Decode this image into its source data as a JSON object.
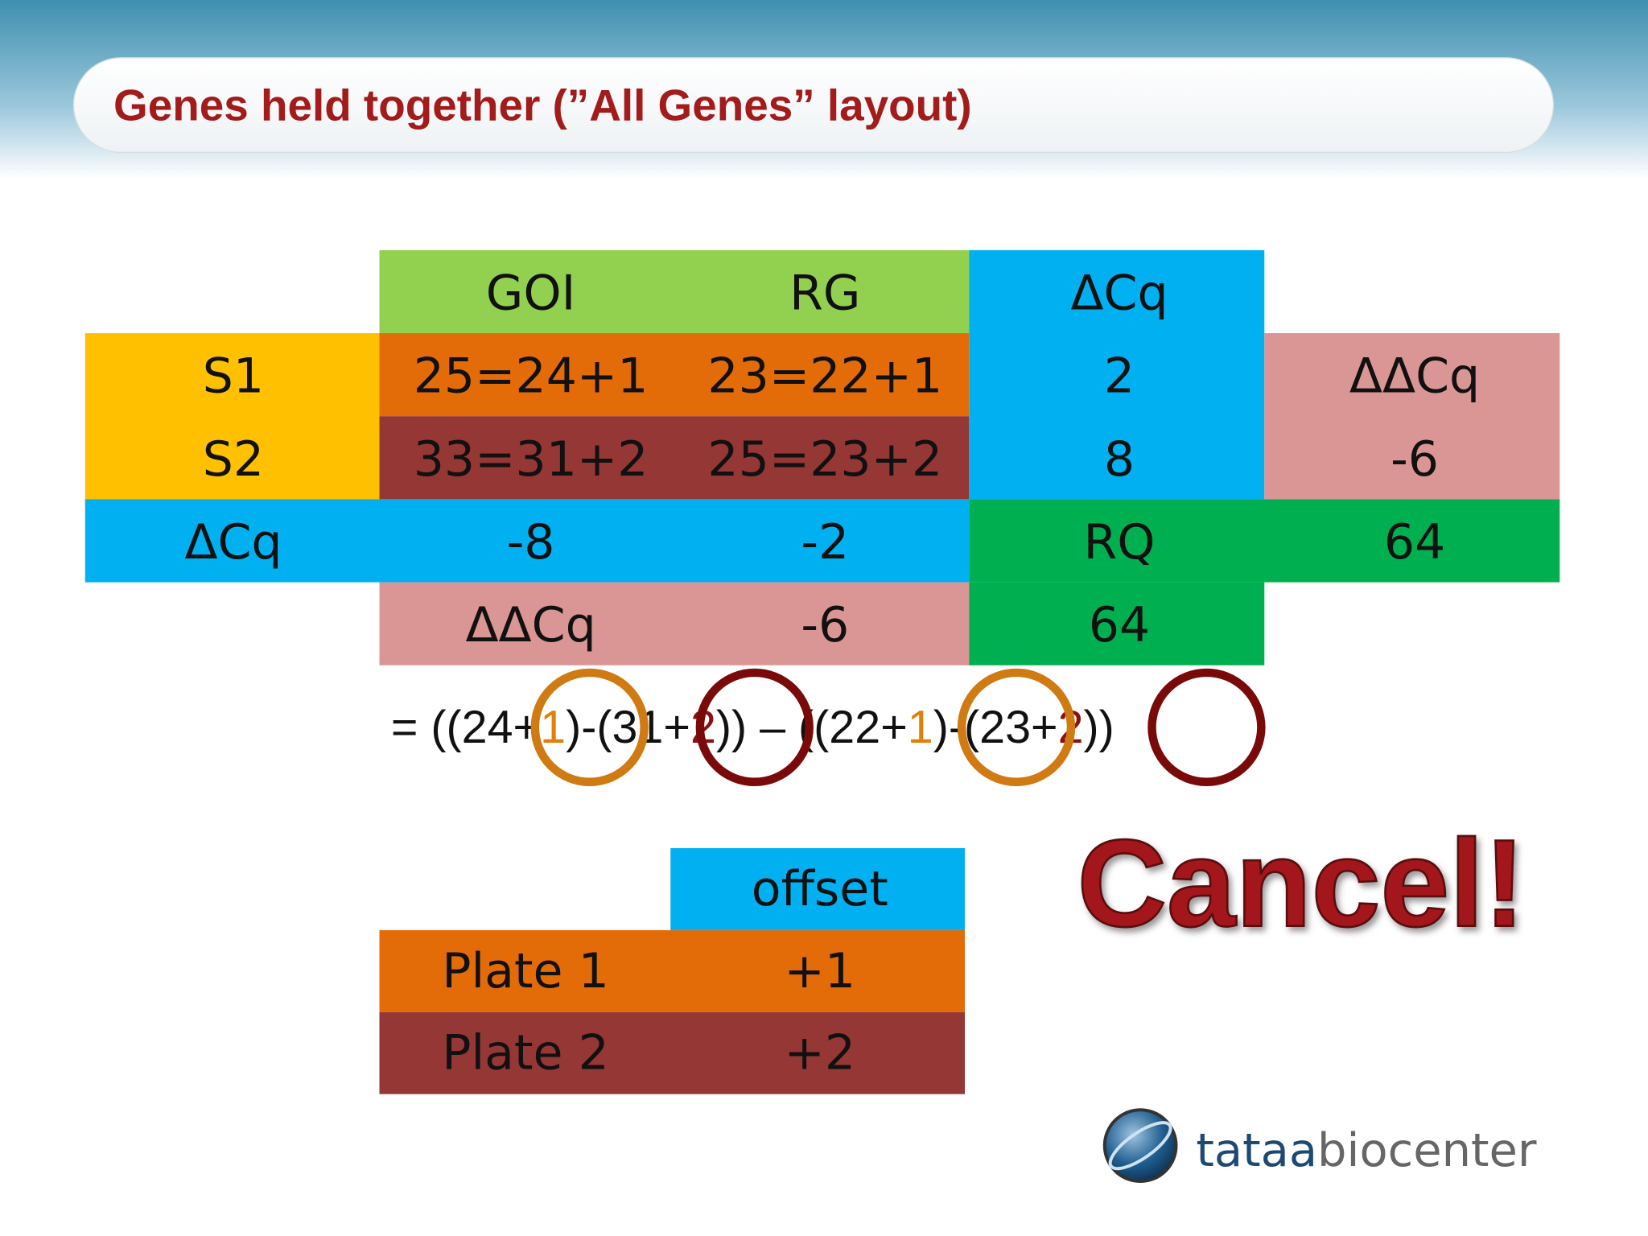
{
  "header": {
    "title": "Genes held together (”All Genes” layout)"
  },
  "table": {
    "rows": [
      [
        "GOI",
        "RG",
        "ΔCq"
      ],
      [
        "S1",
        "25=24+1",
        "23=22+1",
        "2",
        "ΔΔCq"
      ],
      [
        "S2",
        "33=31+2",
        "25=23+2",
        "8",
        "-6"
      ],
      [
        "ΔCq",
        "-8",
        "-2",
        "RQ",
        "64"
      ],
      [
        "ΔΔCq",
        "-6",
        "64"
      ]
    ]
  },
  "formula": [
    "= ((24+",
    "1",
    ")-(31+",
    "2",
    ")) – ((22+",
    "1",
    ")-(23+",
    "2",
    "))"
  ],
  "offset_table": {
    "header": "offset",
    "rows": [
      [
        "Plate 1",
        "+1"
      ],
      [
        "Plate 2",
        "+2"
      ]
    ]
  },
  "callout": "Cancel!",
  "logo": [
    "tataa",
    "biocenter"
  ]
}
